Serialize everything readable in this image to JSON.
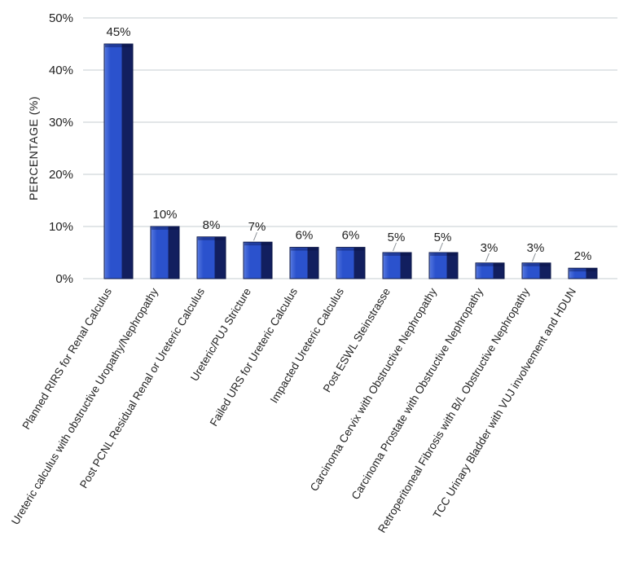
{
  "chart_data": {
    "type": "bar",
    "title": "",
    "xlabel": "",
    "ylabel": "PERCENTAGE (%)",
    "ylim": [
      0,
      50
    ],
    "grid": true,
    "legend": null,
    "yticks": [
      0,
      10,
      20,
      30,
      40,
      50
    ],
    "ytick_labels": [
      "0%",
      "10%",
      "20%",
      "30%",
      "40%",
      "50%"
    ],
    "categories": [
      "Planned RIRS for Renal Calculus",
      "Ureteric calculus with obstructive Uropathy/Nephropathy",
      "Post PCNL Residual Renal or Ureteric Calculus",
      "Ureteric/PUJ Stricture",
      "Failed URS for Ureteric Calculus",
      "Impacted Ureteric Calculus",
      "Post ESWL Steinstrasse",
      "Carcinoma Cervix with Obstructive Nephropathy",
      "Carcinoma Prostate with Obstructive Nephropathy",
      "Retroperitoneal Fibrosis with B/L Obstructive Nephropathy",
      "TCC Urinary Bladder with VUJ involvement and HDUN"
    ],
    "values": [
      45,
      10,
      8,
      7,
      6,
      6,
      5,
      5,
      3,
      3,
      2
    ],
    "data_labels": [
      "45%",
      "10%",
      "8%",
      "7%",
      "6%",
      "6%",
      "5%",
      "5%",
      "3%",
      "3%",
      "2%"
    ],
    "leader_lines": [
      false,
      false,
      false,
      true,
      false,
      false,
      true,
      true,
      true,
      true,
      false
    ],
    "colors": {
      "bar_highlight": "#7e98ea",
      "bar_light": "#4c70dc",
      "bar_main": "#2b52cd",
      "bar_dark": "#121f5f",
      "bar_outline": "#0a1545",
      "bar_top_shade": "rgba(8,14,60,0.35)",
      "gridline": "#c6ccd2",
      "text": "#212121",
      "leader": "#8a9096",
      "background": "#ffffff"
    }
  }
}
